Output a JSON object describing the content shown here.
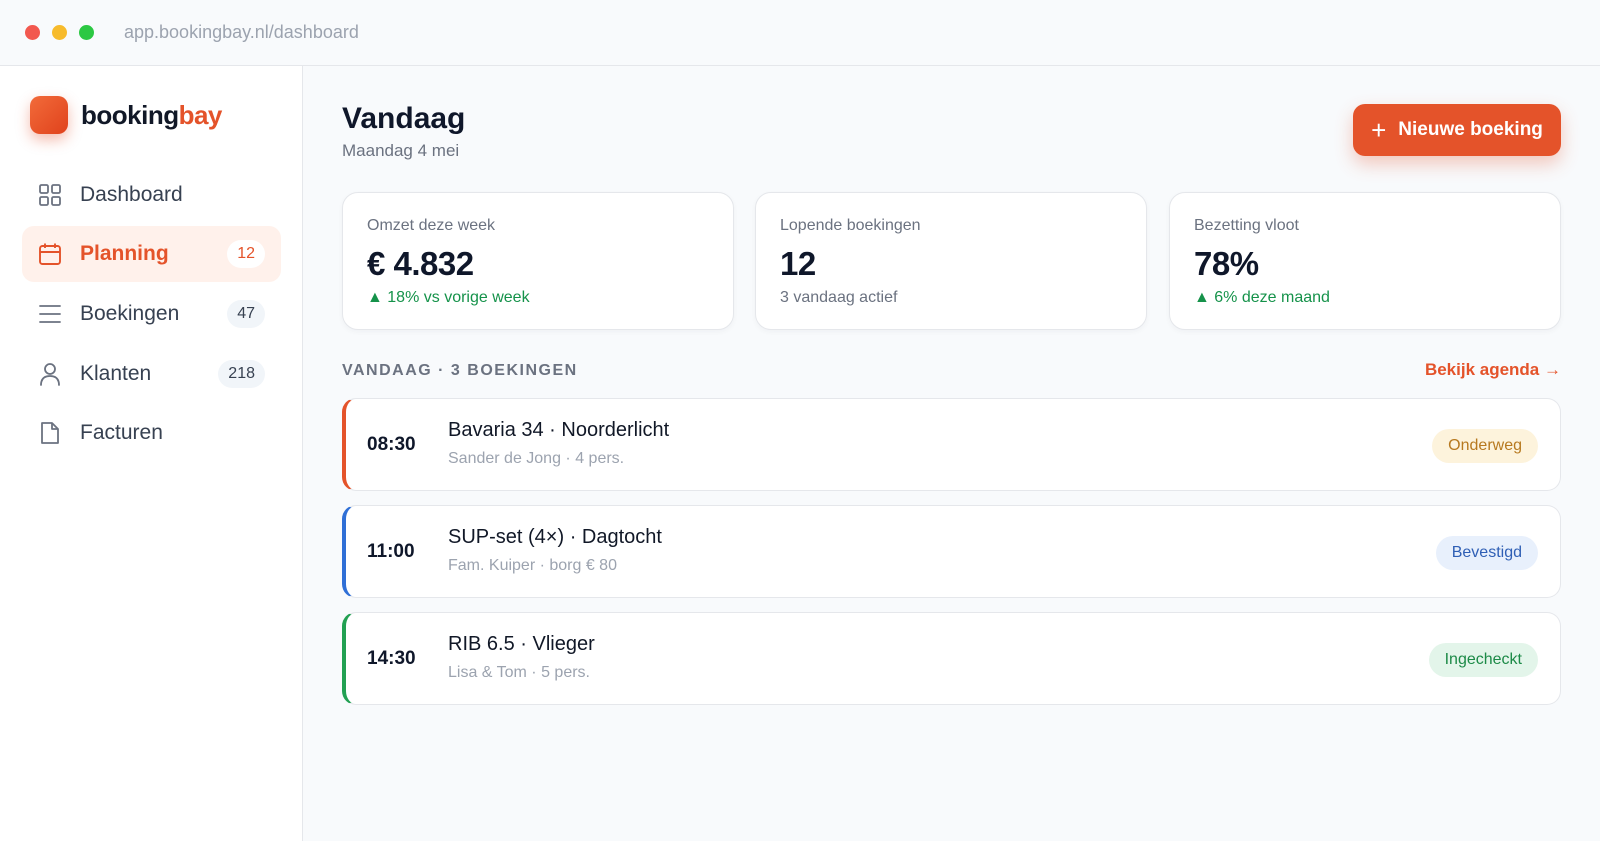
{
  "browser": {
    "url": "app.bookingbay.nl/dashboard"
  },
  "brand": {
    "name_part1": "booking",
    "name_part2": "bay",
    "accent": "#e4532a"
  },
  "sidebar": {
    "items": [
      {
        "label": "Dashboard",
        "icon": "grid-icon",
        "badge": null,
        "active": false
      },
      {
        "label": "Planning",
        "icon": "calendar-icon",
        "badge": "12",
        "active": true
      },
      {
        "label": "Boekingen",
        "icon": "list-icon",
        "badge": "47",
        "active": false
      },
      {
        "label": "Klanten",
        "icon": "user-icon",
        "badge": "218",
        "active": false
      },
      {
        "label": "Facturen",
        "icon": "document-icon",
        "badge": null,
        "active": false
      }
    ]
  },
  "header": {
    "title": "Vandaag",
    "subtitle": "Maandag 4 mei",
    "new_button_icon": "+",
    "new_button_label": "Nieuwe boeking"
  },
  "stats": [
    {
      "label": "Omzet deze week",
      "value": "€ 4.832",
      "sub": "▲ 18% vs vorige week",
      "trend": "up"
    },
    {
      "label": "Lopende boekingen",
      "value": "12",
      "sub": "3 vandaag actief",
      "trend": "neutral"
    },
    {
      "label": "Bezetting vloot",
      "value": "78%",
      "sub": "▲ 6% deze maand",
      "trend": "up"
    }
  ],
  "today": {
    "title": "VANDAAG · 3 BOEKINGEN",
    "link": "Bekijk agenda →",
    "bookings": [
      {
        "time": "08:30",
        "title": "Bavaria 34 · Noorderlicht",
        "meta": "Sander de Jong · 4 pers.",
        "status": "Onderweg",
        "color": "#e4532a",
        "status_bg": "#fdf3dc",
        "status_fg": "#b7791f"
      },
      {
        "time": "11:00",
        "title": "SUP-set (4×) · Dagtocht",
        "meta": "Fam. Kuiper · borg € 80",
        "status": "Bevestigd",
        "color": "#2f6fd6",
        "status_bg": "#e8f0fc",
        "status_fg": "#2f5fb5"
      },
      {
        "time": "14:30",
        "title": "RIB 6.5 · Vlieger",
        "meta": "Lisa & Tom · 5 pers.",
        "status": "Ingecheckt",
        "color": "#22a052",
        "status_bg": "#e3f5ea",
        "status_fg": "#1c8a47"
      }
    ]
  }
}
